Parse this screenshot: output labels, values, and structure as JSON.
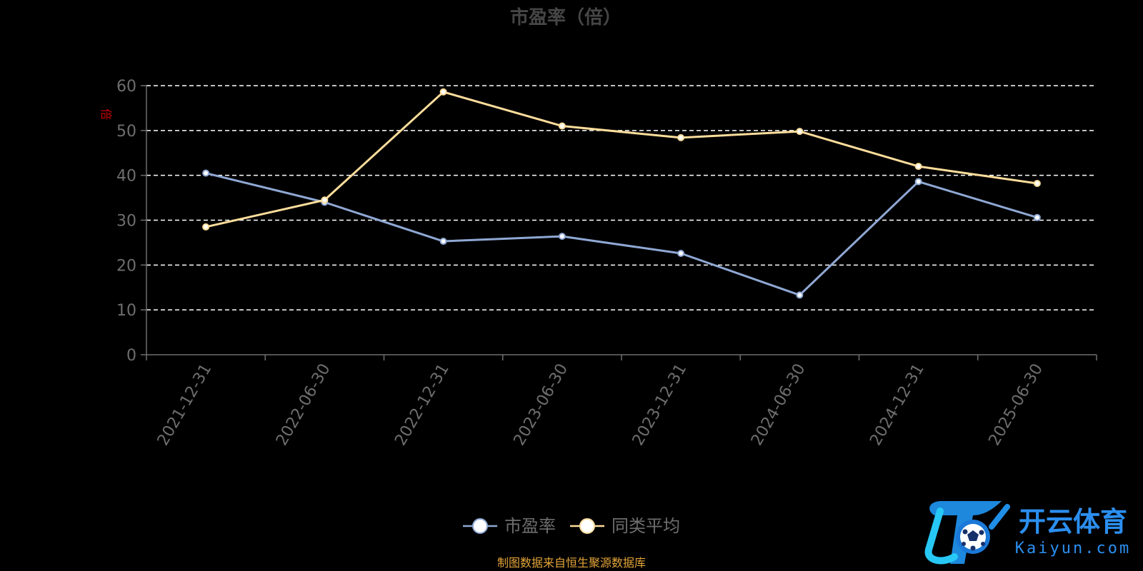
{
  "chart_data": {
    "type": "line",
    "title": "市盈率（倍）",
    "ylabel": "倍",
    "categories": [
      "2021-12-31",
      "2022-06-30",
      "2022-12-31",
      "2023-06-30",
      "2023-12-31",
      "2024-06-30",
      "2024-12-31",
      "2025-06-30"
    ],
    "ylim": [
      0,
      60
    ],
    "yticks": [
      0,
      10,
      20,
      30,
      40,
      50,
      60
    ],
    "grid": true,
    "legend_position": "bottom",
    "series": [
      {
        "name": "市盈率",
        "color": "#8fa8d4",
        "values": [
          40.5,
          34.0,
          25.3,
          26.4,
          22.6,
          13.3,
          38.6,
          30.6
        ]
      },
      {
        "name": "同类平均",
        "color": "#fddd9b",
        "values": [
          28.5,
          34.5,
          58.6,
          51.0,
          48.4,
          49.8,
          42.0,
          38.2
        ]
      }
    ],
    "source_note": "制图数据来自恒生聚源数据库"
  },
  "watermark": {
    "brand_cn": "开云体育",
    "brand_en": "Kaiyun.com"
  },
  "colors": {
    "background": "#000000",
    "axis": "#6e6e6e",
    "grid": "#ffffff",
    "title": "#464646",
    "source_note": "#e3a438",
    "ylabel": "#cc0000",
    "watermark": "#2b8ff0"
  }
}
